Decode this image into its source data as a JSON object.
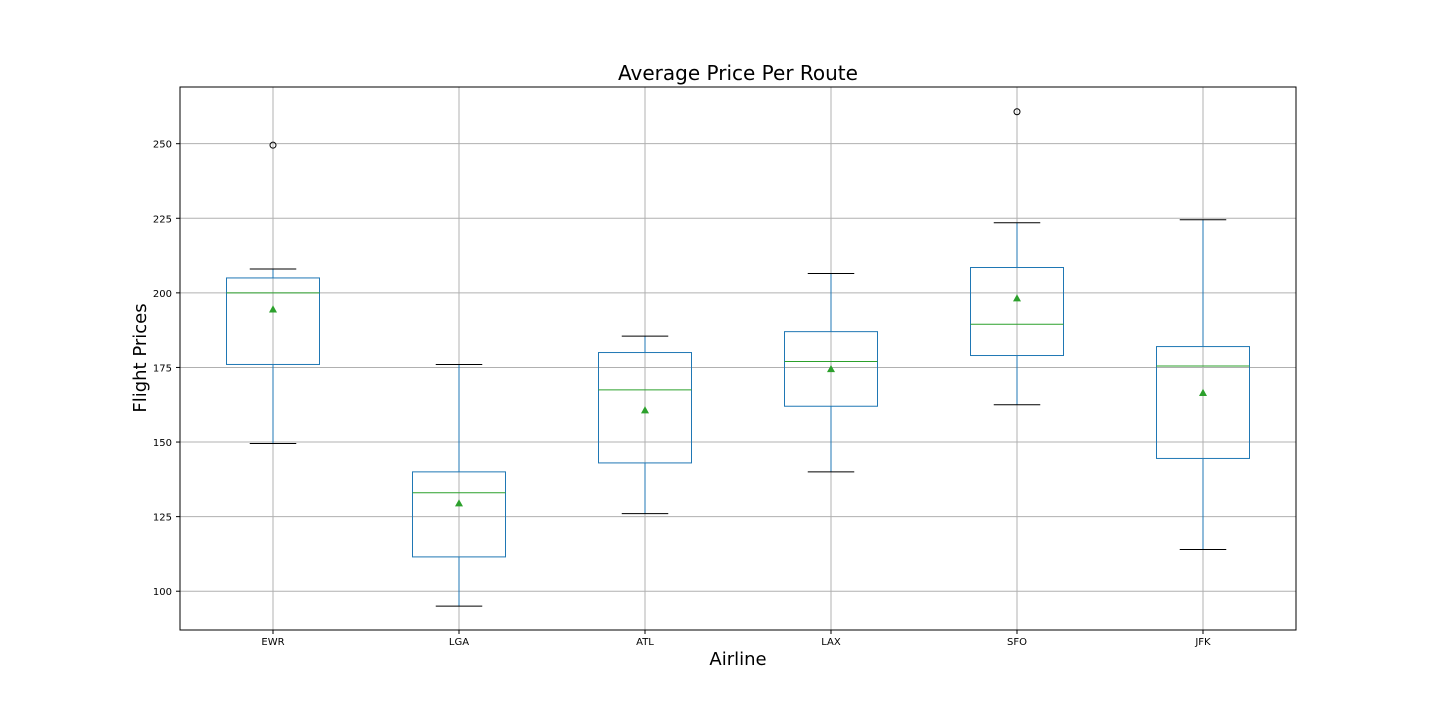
{
  "chart_data": {
    "type": "box",
    "title": "Average Price Per Route",
    "xlabel": "Airline",
    "ylabel": "Flight Prices",
    "categories": [
      "EWR",
      "LGA",
      "ATL",
      "LAX",
      "SFO",
      "JFK"
    ],
    "boxes": [
      {
        "category": "EWR",
        "whisker_low": 149.5,
        "q1": 176,
        "median": 200,
        "q3": 205,
        "whisker_high": 208,
        "mean": 194.5,
        "outliers": [
          249.5
        ]
      },
      {
        "category": "LGA",
        "whisker_low": 95,
        "q1": 111.5,
        "median": 133,
        "q3": 140,
        "whisker_high": 176,
        "mean": 129.5,
        "outliers": []
      },
      {
        "category": "ATL",
        "whisker_low": 126,
        "q1": 143,
        "median": 167.5,
        "q3": 180,
        "whisker_high": 185.5,
        "mean": 160.7,
        "outliers": []
      },
      {
        "category": "LAX",
        "whisker_low": 140,
        "q1": 162,
        "median": 177,
        "q3": 187,
        "whisker_high": 206.5,
        "mean": 174.5,
        "outliers": []
      },
      {
        "category": "SFO",
        "whisker_low": 162.5,
        "q1": 179,
        "median": 189.5,
        "q3": 208.5,
        "whisker_high": 223.5,
        "mean": 198.2,
        "outliers": [
          260.7
        ]
      },
      {
        "category": "JFK",
        "whisker_low": 114,
        "q1": 144.5,
        "median": 175.5,
        "q3": 182,
        "whisker_high": 224.5,
        "mean": 166.5,
        "outliers": []
      }
    ],
    "y_ticks": [
      100,
      125,
      150,
      175,
      200,
      225,
      250
    ],
    "ylim": [
      87,
      269
    ],
    "grid": true,
    "colors": {
      "box": "#1f77b4",
      "median": "#2ca02c",
      "mean": "#2ca02c",
      "whisker_cap": "#000000",
      "grid": "#b0b0b0"
    }
  }
}
